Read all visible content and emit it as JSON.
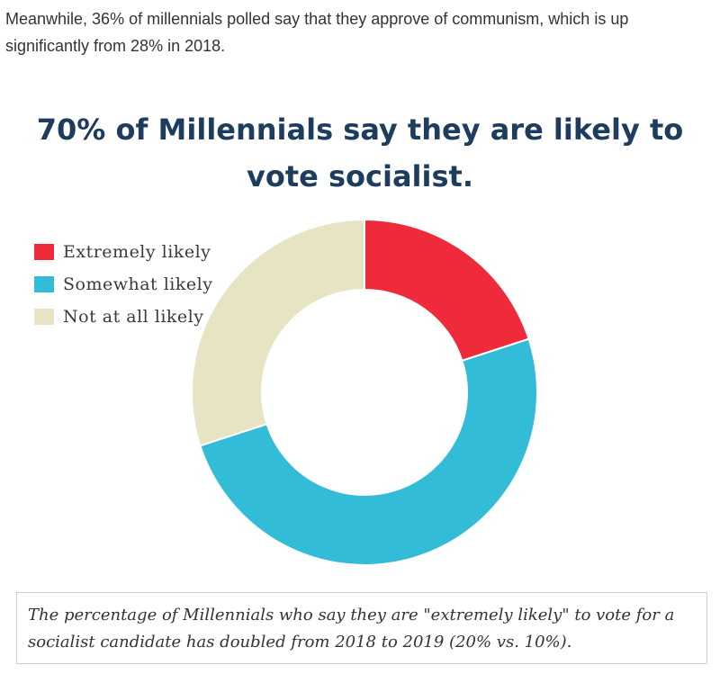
{
  "article": {
    "intro_text": "Meanwhile, 36% of millennials polled say that they approve of communism, which is up significantly from 28% in 2018."
  },
  "chart_data": {
    "type": "pie",
    "title": "70% of Millennials say they are likely to vote socialist.",
    "donut": true,
    "categories": [
      "Extremely likely",
      "Somewhat likely",
      "Not at all likely"
    ],
    "values": [
      20,
      50,
      30
    ],
    "colors": [
      "#ee2a3b",
      "#33bcd8",
      "#e6e4c2"
    ],
    "legend_position": "top-left"
  },
  "caption": {
    "text": "The percentage of Millennials who say they are \"extremely likely\" to vote for a socialist candidate has doubled from 2018 to 2019 (20% vs. 10%)."
  }
}
